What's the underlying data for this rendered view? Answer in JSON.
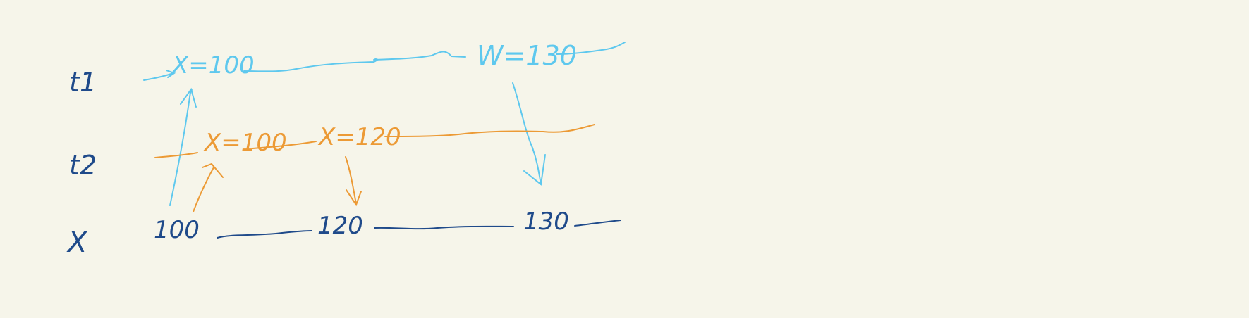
{
  "colors": {
    "background": "#f6f5ea",
    "ink_dark": "#1f4a8a",
    "ink_light_blue": "#5ec8ee",
    "ink_orange": "#ec9a35"
  },
  "rows": {
    "t1": "t1",
    "t2": "t2",
    "x": "X"
  },
  "t1_events": {
    "read": "X=100",
    "write": "W=130"
  },
  "t2_events": {
    "read": "X=100",
    "write": "X=120"
  },
  "x_values": [
    "100",
    "120",
    "130"
  ]
}
